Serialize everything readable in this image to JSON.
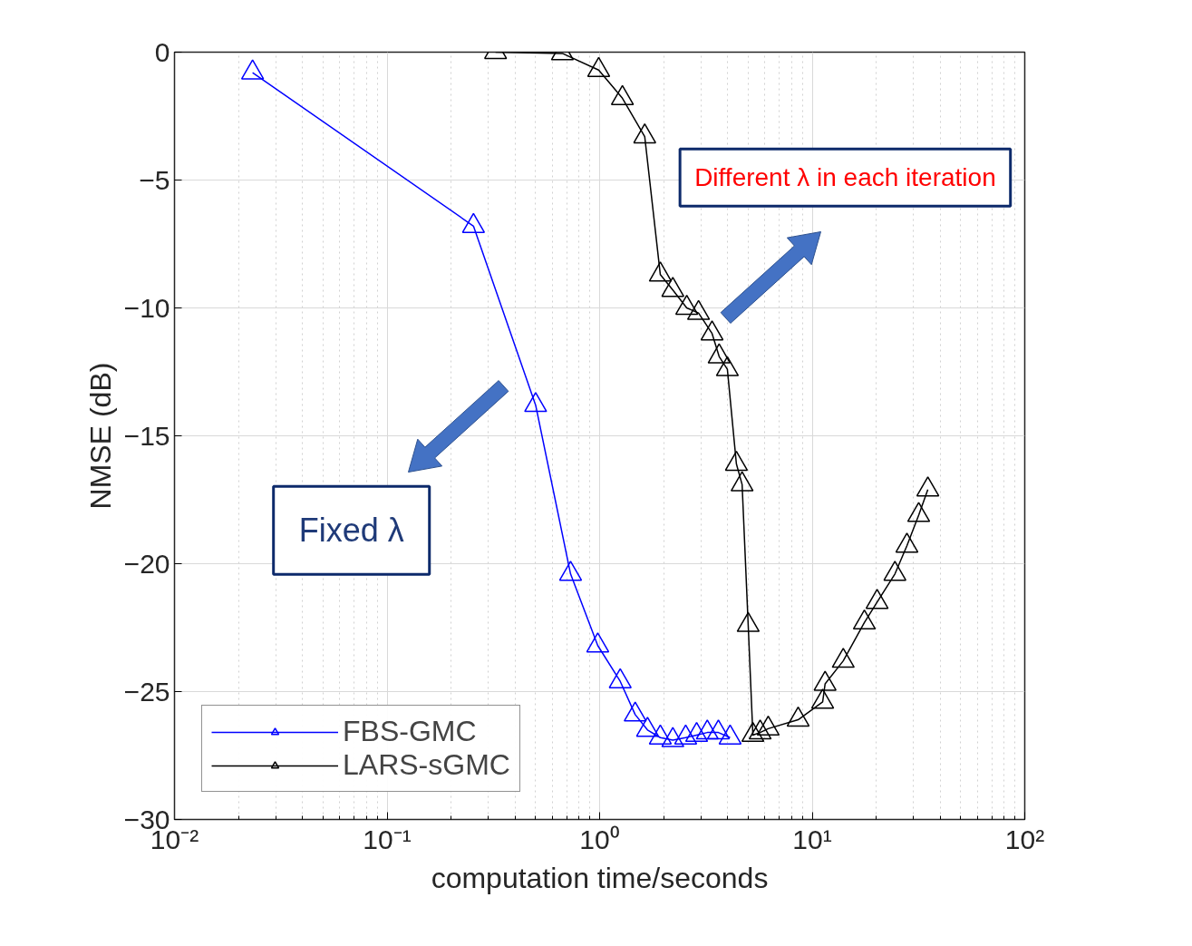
{
  "chart_data": {
    "type": "line",
    "xlabel": "computation time/seconds",
    "ylabel": "NMSE (dB)",
    "log": "x",
    "grid": true,
    "legend": "bottom left",
    "marker": "triangle",
    "line_style": "solid",
    "xlim": [
      0.01,
      100
    ],
    "ylim": [
      -30,
      0
    ],
    "xticks": [
      {
        "value": 0.01,
        "label": "10⁻²"
      },
      {
        "value": 0.1,
        "label": "10⁻¹"
      },
      {
        "value": 1,
        "label": "10⁰"
      },
      {
        "value": 10,
        "label": "10¹"
      },
      {
        "value": 100,
        "label": "10²"
      }
    ],
    "yticks": [
      0,
      -5,
      -10,
      -15,
      -20,
      -25,
      -30
    ],
    "series": [
      {
        "name": "FBS-GMC",
        "color": "#0000ff",
        "x": [
          0.0233,
          0.255,
          0.5,
          0.73,
          0.98,
          1.25,
          1.47,
          1.68,
          1.93,
          2.21,
          2.54,
          2.86,
          3.21,
          3.62,
          4.11
        ],
        "values": [
          -0.8,
          -6.8,
          -13.8,
          -20.4,
          -23.2,
          -24.6,
          -25.9,
          -26.5,
          -26.8,
          -26.9,
          -26.8,
          -26.7,
          -26.6,
          -26.6,
          -26.8
        ]
      },
      {
        "name": "LARS-sGMC",
        "color": "#000000",
        "x": [
          0.324,
          0.668,
          0.99,
          1.28,
          1.63,
          1.93,
          2.21,
          2.57,
          2.92,
          3.38,
          3.65,
          3.99,
          4.4,
          4.68,
          5.0,
          5.26,
          5.69,
          6.21,
          8.59,
          11.2,
          11.5,
          14.0,
          17.6,
          20.2,
          24.5,
          27.9,
          31.7,
          35.0
        ],
        "values": [
          0,
          -0.05,
          -0.7,
          -1.8,
          -3.3,
          -8.7,
          -9.3,
          -10.0,
          -10.2,
          -11.0,
          -11.9,
          -12.4,
          -16.1,
          -16.9,
          -22.4,
          -26.7,
          -26.6,
          -26.45,
          -26.1,
          -25.4,
          -24.7,
          -23.8,
          -22.3,
          -21.5,
          -20.4,
          -19.3,
          -18.1,
          -17.1
        ]
      }
    ],
    "annotations": [
      "Fixed λ",
      "Different λ in each iteration"
    ]
  }
}
